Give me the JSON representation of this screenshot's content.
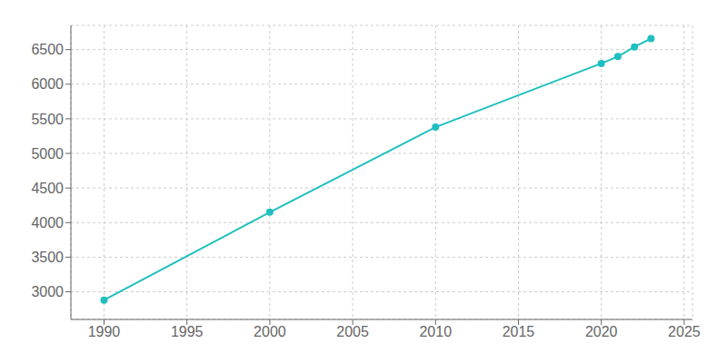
{
  "chart_data": {
    "type": "line",
    "x": [
      1990,
      2000,
      2010,
      2020,
      2021,
      2022,
      2023
    ],
    "series": [
      {
        "values": [
          2880,
          4150,
          5380,
          6300,
          6400,
          6540,
          6660
        ],
        "color": "#20BFBF",
        "marker": "circle"
      }
    ],
    "xlim": [
      1988,
      2025.5
    ],
    "ylim": [
      2600,
      6850
    ],
    "xticks": [
      1990,
      1995,
      2000,
      2005,
      2010,
      2015,
      2020,
      2025
    ],
    "yticks": [
      3000,
      3500,
      4000,
      4500,
      5000,
      5500,
      6000,
      6500
    ],
    "grid": true
  }
}
